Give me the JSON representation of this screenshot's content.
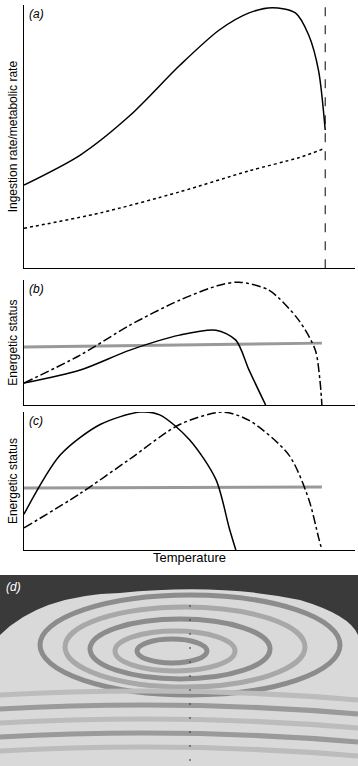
{
  "chart_data": [
    {
      "type": "line",
      "label": "(a)",
      "y_label": "Ingestion rate/metabolic rate",
      "xlim": [
        0,
        100
      ],
      "ylim": [
        0,
        100
      ],
      "xticks": [],
      "yticks": [],
      "tick_labels": false,
      "grid": false,
      "reference_line": {
        "x": 91,
        "line_style": "dashed",
        "color": "#000000"
      },
      "series": [
        {
          "color": "#000000",
          "line_style": "solid",
          "x": [
            0,
            17,
            32,
            47,
            59,
            68,
            75,
            82,
            86,
            89,
            91
          ],
          "values": [
            31.6,
            43,
            58,
            77,
            90.5,
            97,
            99,
            97,
            88.6,
            75,
            52.5
          ]
        },
        {
          "color": "#000000",
          "line_style": "dot",
          "x": [
            0,
            23,
            47,
            68,
            83,
            91
          ],
          "values": [
            15.2,
            21,
            29,
            37,
            42,
            45.6
          ]
        }
      ]
    },
    {
      "type": "line",
      "label": "(b)",
      "y_label": "Energetic status",
      "xlim": [
        0,
        100
      ],
      "ylim": [
        0,
        100
      ],
      "xticks": [],
      "yticks": [],
      "tick_labels": false,
      "grid": false,
      "series": [
        {
          "color": "#999999",
          "line_style": "solid",
          "x": [
            0,
            90
          ],
          "values": [
            46.4,
            49.6
          ]
        },
        {
          "color": "#000000",
          "line_style": "dashdot",
          "x": [
            0,
            17,
            32,
            47,
            59,
            65,
            74,
            83,
            88,
            89.4,
            90
          ],
          "values": [
            17.6,
            40,
            64,
            84,
            96,
            98.4,
            92,
            68,
            44,
            20,
            0
          ]
        },
        {
          "color": "#000000",
          "line_style": "solid",
          "x": [
            0,
            17,
            32,
            47,
            58,
            64,
            68,
            73
          ],
          "values": [
            17.6,
            28,
            44,
            56,
            60,
            52,
            28,
            0
          ]
        }
      ]
    },
    {
      "type": "line",
      "label": "(c)",
      "y_label": "Energetic status",
      "x_label": "Temperature",
      "xlim": [
        0,
        100
      ],
      "ylim": [
        0,
        100
      ],
      "xticks": [],
      "yticks": [],
      "tick_labels": false,
      "grid": false,
      "series": [
        {
          "color": "#999999",
          "line_style": "solid",
          "x": [
            0,
            90
          ],
          "values": [
            45,
            45.7
          ]
        },
        {
          "color": "#000000",
          "line_style": "solid",
          "x": [
            0,
            11,
            23,
            35,
            41,
            50,
            58,
            62,
            64
          ],
          "values": [
            26,
            69,
            91,
            100,
            98,
            80,
            51,
            16,
            0
          ]
        },
        {
          "color": "#000000",
          "line_style": "dashdot",
          "x": [
            0,
            17,
            32,
            47,
            60,
            68,
            80,
            86,
            89,
            90
          ],
          "values": [
            16,
            41,
            66,
            91,
            100,
            94,
            69,
            37,
            9,
            0
          ]
        }
      ]
    }
  ],
  "photo": {
    "label": "(d)"
  }
}
